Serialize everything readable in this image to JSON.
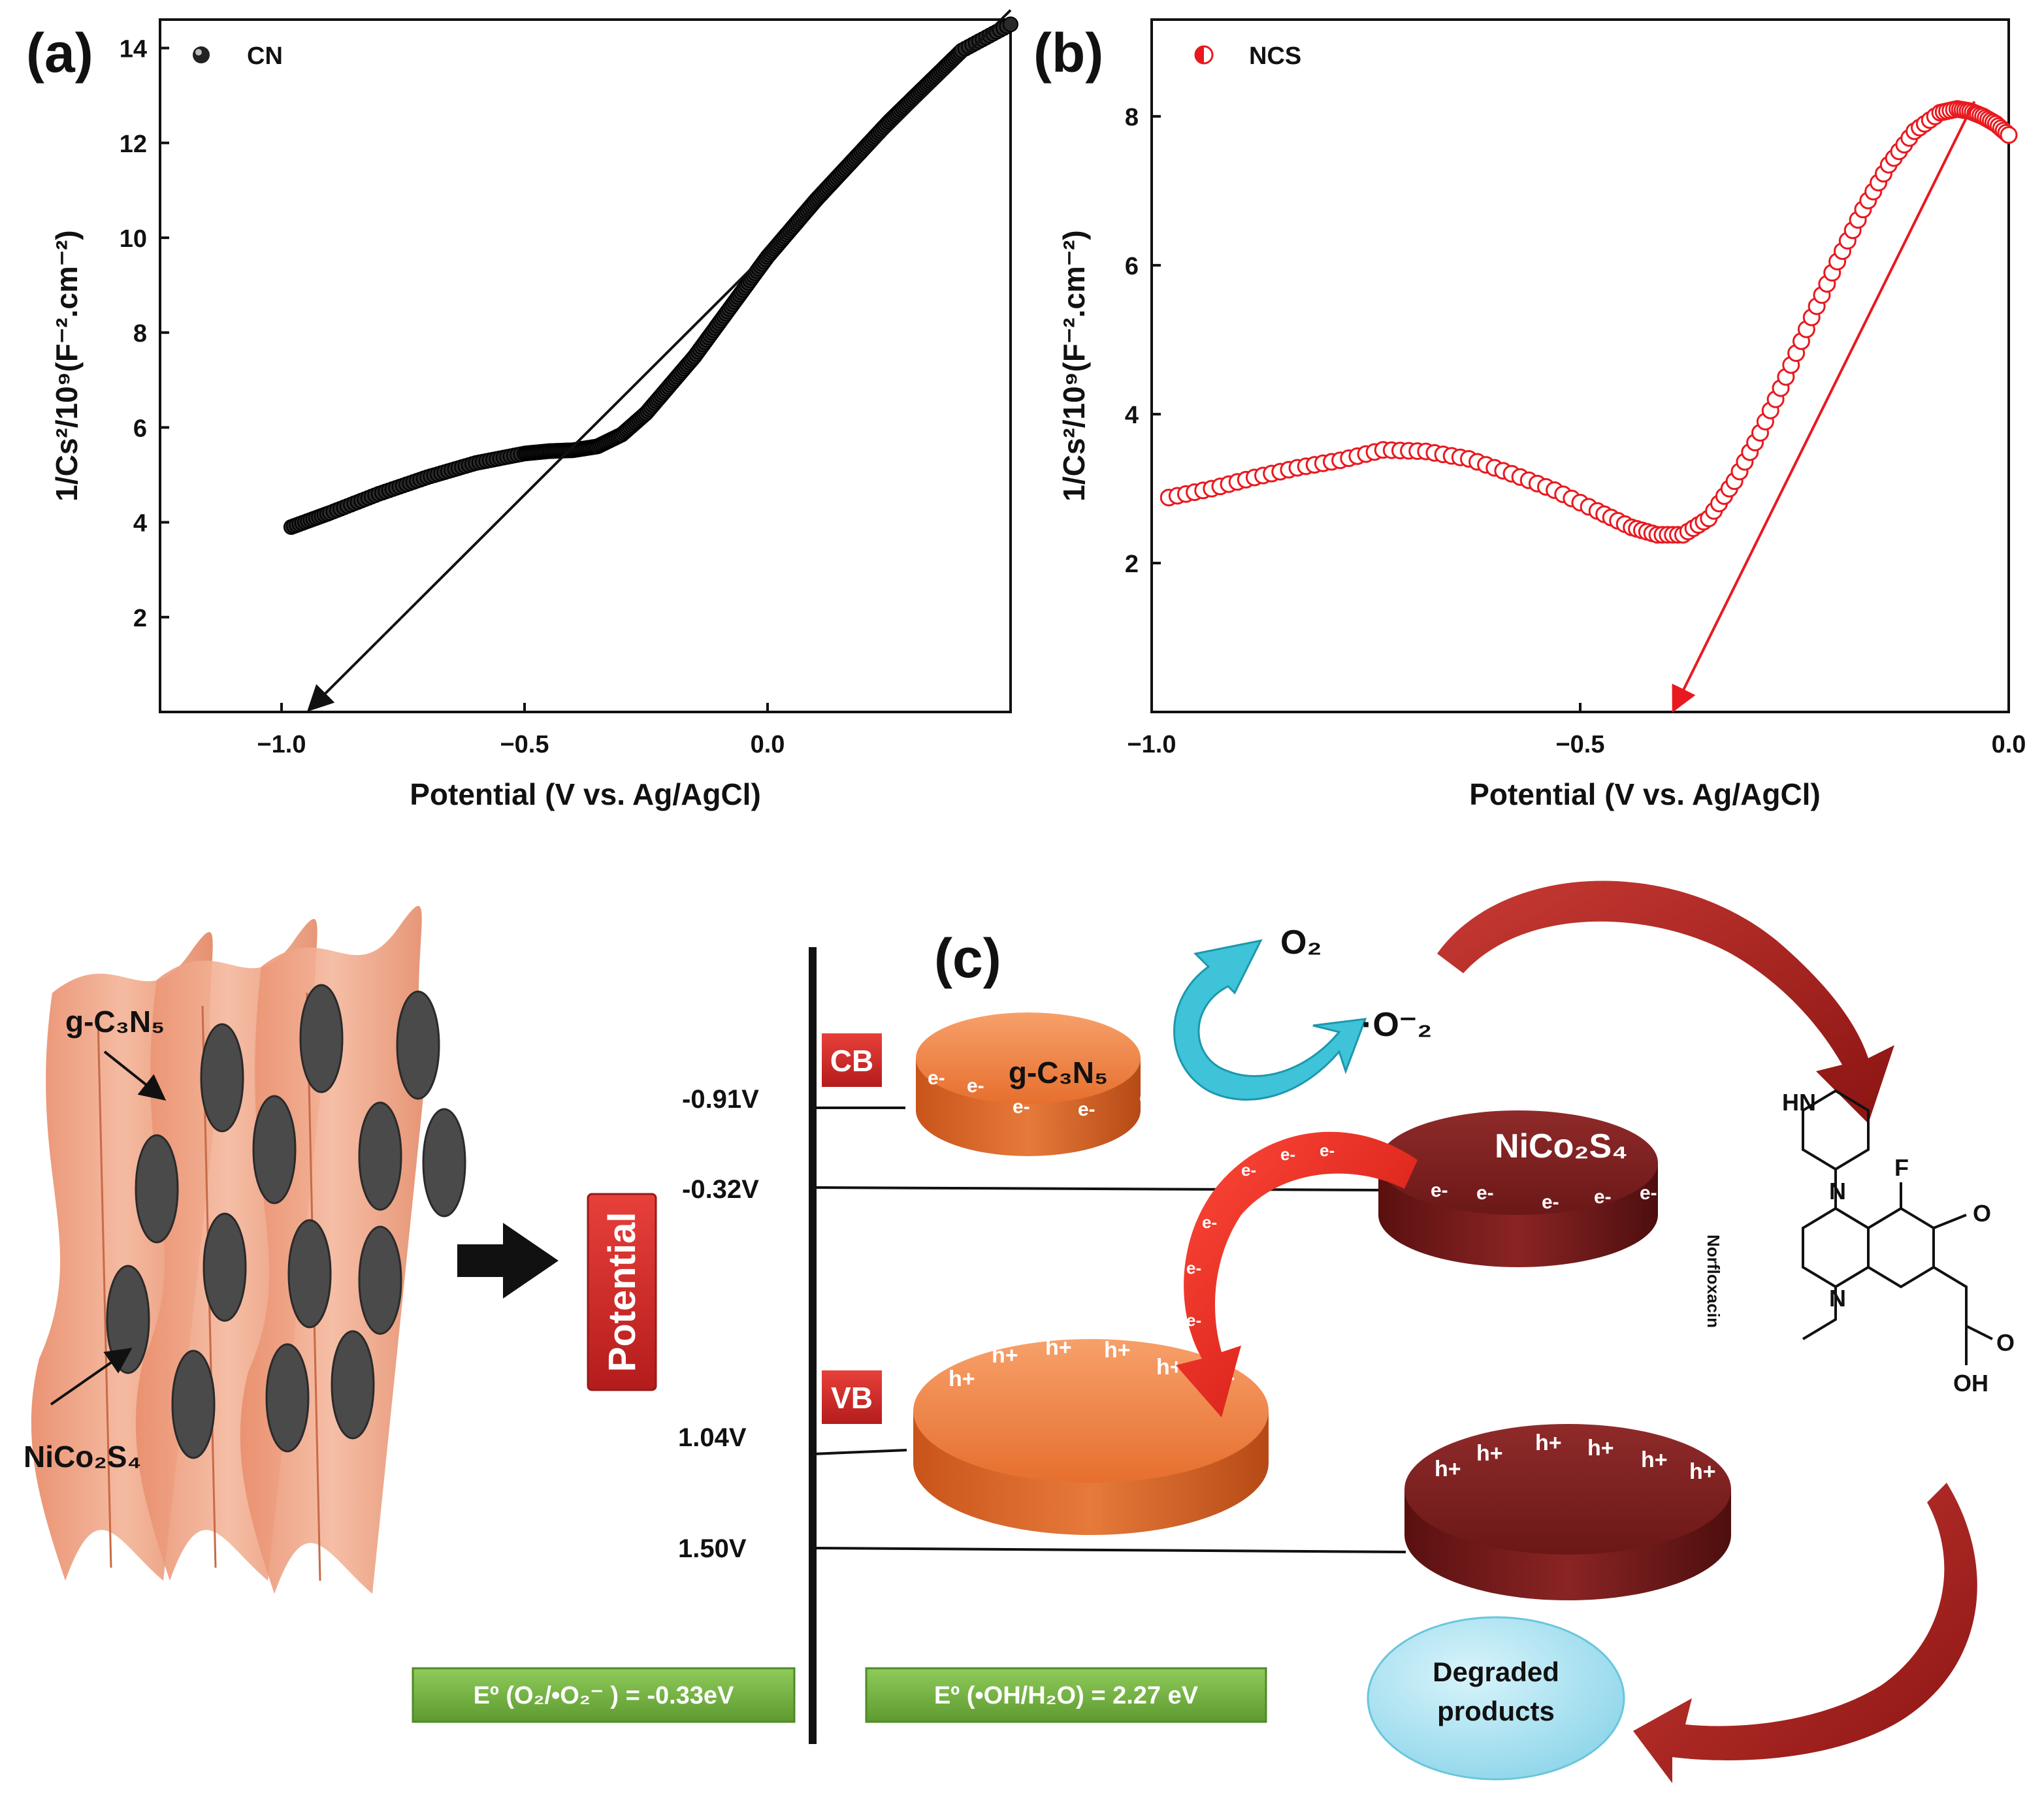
{
  "chart_data": [
    {
      "type": "scatter",
      "panel_label": "(a)",
      "legend": "CN",
      "legend_position": "top-left",
      "xlabel": "Potential (V vs. Ag/AgCl)",
      "ylabel": "1/Cs²/10⁹(F⁻².cm⁻²)",
      "xlim": [
        -1.25,
        0.5
      ],
      "ylim": [
        0,
        14.6
      ],
      "xticks": [
        -1.0,
        -0.5,
        0.0
      ],
      "xtick_labels": [
        "−1.0",
        "−0.5",
        "0.0"
      ],
      "yticks": [
        2,
        4,
        6,
        8,
        10,
        12,
        14
      ],
      "ytick_labels": [
        "2",
        "4",
        "6",
        "8",
        "10",
        "12",
        "14"
      ],
      "color": "#111111",
      "series": [
        {
          "name": "CN",
          "x": [
            -0.98,
            -0.9,
            -0.8,
            -0.7,
            -0.6,
            -0.5,
            -0.45,
            -0.4,
            -0.35,
            -0.3,
            -0.25,
            -0.2,
            -0.15,
            -0.1,
            -0.05,
            0.0,
            0.05,
            0.1,
            0.15,
            0.2,
            0.25,
            0.3,
            0.35,
            0.4,
            0.5
          ],
          "y": [
            3.9,
            4.2,
            4.6,
            4.95,
            5.25,
            5.45,
            5.5,
            5.52,
            5.6,
            5.85,
            6.3,
            6.9,
            7.5,
            8.2,
            8.9,
            9.6,
            10.2,
            10.8,
            11.35,
            11.9,
            12.45,
            12.95,
            13.45,
            13.95,
            14.5
          ]
        }
      ],
      "fit_line": {
        "x": [
          0.5,
          -0.94
        ],
        "y": [
          14.8,
          0.0
        ]
      }
    },
    {
      "type": "scatter",
      "panel_label": "(b)",
      "legend": "NCS",
      "legend_position": "top-left",
      "xlabel": "Potential (V vs. Ag/AgCl)",
      "ylabel": "1/Cs²/10⁹(F⁻².cm⁻²)",
      "xlim": [
        -1.0,
        0.0
      ],
      "ylim": [
        0,
        9.3
      ],
      "xticks": [
        -1.0,
        -0.5,
        0.0
      ],
      "xtick_labels": [
        "−1.0",
        "−0.5",
        "0.0"
      ],
      "yticks": [
        2,
        4,
        6,
        8
      ],
      "ytick_labels": [
        "2",
        "4",
        "6",
        "8"
      ],
      "color": "#e8191f",
      "series": [
        {
          "name": "NCS",
          "x": [
            -0.98,
            -0.93,
            -0.88,
            -0.83,
            -0.78,
            -0.73,
            -0.68,
            -0.63,
            -0.58,
            -0.53,
            -0.48,
            -0.44,
            -0.41,
            -0.38,
            -0.35,
            -0.32,
            -0.29,
            -0.26,
            -0.23,
            -0.2,
            -0.17,
            -0.14,
            -0.11,
            -0.08,
            -0.06,
            -0.045,
            -0.03,
            -0.015,
            0.0
          ],
          "y": [
            2.88,
            3.0,
            3.15,
            3.28,
            3.38,
            3.52,
            3.5,
            3.4,
            3.2,
            2.98,
            2.7,
            2.48,
            2.38,
            2.38,
            2.6,
            3.1,
            3.75,
            4.5,
            5.3,
            6.05,
            6.75,
            7.35,
            7.8,
            8.05,
            8.1,
            8.07,
            8.0,
            7.9,
            7.75
          ]
        }
      ],
      "fit_line": {
        "x": [
          -0.04,
          -0.39
        ],
        "y": [
          8.2,
          0.0
        ]
      }
    }
  ],
  "panel_c": {
    "label": "(c)",
    "material_top": "g-C₃N₅",
    "material_bottom": "NiCo₂S₄",
    "potential_label": "Potential",
    "cb_label": "CB",
    "vb_label": "VB",
    "levels": [
      "-0.91V",
      "-0.32V",
      "1.04V",
      "1.50V"
    ],
    "disk_top_left": "g-C₃N₅",
    "disk_top_right": "NiCo₂S₄",
    "electron": "e-",
    "hole": "h+",
    "o2": "O₂",
    "superoxide": "·O⁻₂",
    "molecule_name": "Norfloxacin",
    "molecule_atoms": {
      "hn": "HN",
      "n1": "N",
      "n2": "N",
      "f": "F",
      "o": "O",
      "o2": "O",
      "oh": "OH"
    },
    "degraded": [
      "Degraded",
      "products"
    ],
    "eq1": "Eº (O₂/•O₂⁻ ) =  -0.33eV",
    "eq2": "Eº (•OH/H₂O) =  2.27 eV",
    "colors": {
      "orange": "#e8773a",
      "maroon": "#7a1e1e",
      "red_label": "#d42a2a",
      "green_box": "#7ab648",
      "cyan_arrow": "#3ec3d8",
      "sheet": "#f0a488"
    }
  }
}
